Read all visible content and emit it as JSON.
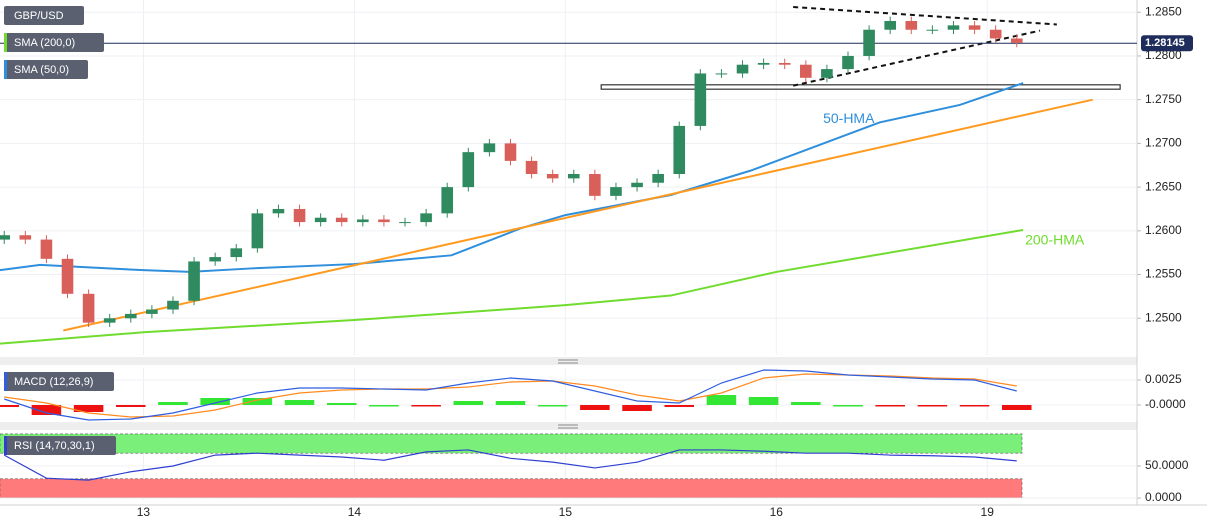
{
  "chart_data": [
    {
      "type": "candlestick",
      "symbol": "GBP/USD",
      "xlim": [
        -0.68,
        4.71
      ],
      "ylim": [
        1.2458,
        1.2864
      ],
      "yticks": [
        {
          "value": 1.25,
          "label": "1.2500"
        },
        {
          "value": 1.255,
          "label": "1.2550"
        },
        {
          "value": 1.26,
          "label": "1.2600"
        },
        {
          "value": 1.265,
          "label": "1.2650"
        },
        {
          "value": 1.27,
          "label": "1.2700"
        },
        {
          "value": 1.275,
          "label": "1.2750"
        },
        {
          "value": 1.28,
          "label": "1.2800"
        },
        {
          "value": 1.285,
          "label": "1.2850"
        }
      ],
      "up_color": "#2f8a5f",
      "down_color": "#d9605a",
      "x": [
        -0.66,
        -0.56,
        -0.46,
        -0.36,
        -0.26,
        -0.16,
        -0.06,
        0.04,
        0.14,
        0.24,
        0.34,
        0.44,
        0.54,
        0.64,
        0.74,
        0.84,
        0.94,
        1.04,
        1.14,
        1.24,
        1.34,
        1.44,
        1.54,
        1.64,
        1.74,
        1.84,
        1.94,
        2.04,
        2.14,
        2.24,
        2.34,
        2.44,
        2.54,
        2.64,
        2.74,
        2.84,
        2.94,
        3.04,
        3.14,
        3.24,
        3.34,
        3.44,
        3.54,
        3.64,
        3.74,
        3.84,
        3.94,
        4.04,
        4.14
      ],
      "open": [
        1.259,
        1.2595,
        1.259,
        1.2568,
        1.2528,
        1.2495,
        1.25,
        1.2505,
        1.251,
        1.252,
        1.2565,
        1.257,
        1.258,
        1.262,
        1.2625,
        1.261,
        1.2615,
        1.261,
        1.2613,
        1.261,
        1.261,
        1.262,
        1.265,
        1.269,
        1.27,
        1.268,
        1.2665,
        1.266,
        1.2665,
        1.264,
        1.265,
        1.2655,
        1.2665,
        1.272,
        1.278,
        1.278,
        1.279,
        1.2792,
        1.279,
        1.2775,
        1.2785,
        1.28,
        1.283,
        1.284,
        1.283,
        1.283,
        1.2835,
        1.283,
        1.282
      ],
      "high": [
        1.26,
        1.26,
        1.2595,
        1.2573,
        1.2533,
        1.2505,
        1.251,
        1.2515,
        1.2525,
        1.257,
        1.2575,
        1.2585,
        1.2625,
        1.263,
        1.263,
        1.262,
        1.262,
        1.2618,
        1.2618,
        1.2615,
        1.2625,
        1.2655,
        1.2695,
        1.2705,
        1.2705,
        1.2685,
        1.267,
        1.267,
        1.267,
        1.2655,
        1.266,
        1.267,
        1.2725,
        1.2785,
        1.2785,
        1.2795,
        1.2797,
        1.2797,
        1.2795,
        1.279,
        1.2805,
        1.2835,
        1.2845,
        1.2845,
        1.2835,
        1.284,
        1.284,
        1.2835,
        1.2825
      ],
      "low": [
        1.2585,
        1.2585,
        1.2563,
        1.2523,
        1.249,
        1.249,
        1.2495,
        1.25,
        1.2505,
        1.2515,
        1.256,
        1.2565,
        1.2575,
        1.2615,
        1.2605,
        1.2605,
        1.2605,
        1.2605,
        1.2605,
        1.2605,
        1.2605,
        1.2615,
        1.2645,
        1.2685,
        1.2675,
        1.266,
        1.2655,
        1.2655,
        1.2635,
        1.2635,
        1.2645,
        1.265,
        1.266,
        1.2715,
        1.2775,
        1.2775,
        1.2785,
        1.2785,
        1.277,
        1.277,
        1.278,
        1.2795,
        1.2825,
        1.2825,
        1.2825,
        1.2825,
        1.2825,
        1.2815,
        1.281
      ],
      "close": [
        1.2595,
        1.259,
        1.2568,
        1.2528,
        1.2495,
        1.25,
        1.2505,
        1.251,
        1.252,
        1.2565,
        1.257,
        1.258,
        1.262,
        1.2625,
        1.261,
        1.2615,
        1.261,
        1.2613,
        1.261,
        1.261,
        1.262,
        1.265,
        1.269,
        1.27,
        1.268,
        1.2665,
        1.266,
        1.2665,
        1.264,
        1.265,
        1.2655,
        1.2665,
        1.272,
        1.278,
        1.278,
        1.279,
        1.2792,
        1.279,
        1.2775,
        1.2785,
        1.28,
        1.283,
        1.284,
        1.283,
        1.283,
        1.2835,
        1.283,
        1.282,
        1.2815
      ],
      "series": [
        {
          "name": "SMA (200,0)",
          "label": "200-HMA",
          "color": "#6fdc2e",
          "x": [
            -0.68,
            0,
            1,
            2,
            2.5,
            3,
            4.17
          ],
          "values": [
            1.2471,
            1.2484,
            1.2498,
            1.2515,
            1.2526,
            1.2553,
            1.2601
          ]
        },
        {
          "name": "SMA (50,0)",
          "label": "50-HMA",
          "color": "#2f8fdc",
          "x": [
            -0.68,
            -0.49,
            0,
            0.22,
            0.51,
            1,
            1.46,
            1.79,
            2,
            2.5,
            2.88,
            3.49,
            3.87,
            4.17
          ],
          "values": [
            1.2555,
            1.2561,
            1.2555,
            1.2553,
            1.2557,
            1.2562,
            1.2572,
            1.2603,
            1.2618,
            1.2641,
            1.2669,
            1.2724,
            1.2744,
            1.2769
          ]
        }
      ],
      "trendline": {
        "color": "#ff9a1f",
        "x": [
          -0.38,
          4.5
        ],
        "values": [
          1.2486,
          1.275
        ]
      },
      "dashed_lines": [
        {
          "x": [
            3.08,
            4.33
          ],
          "values": [
            1.2856,
            1.2836
          ]
        },
        {
          "x": [
            3.08,
            4.25
          ],
          "values": [
            1.2766,
            1.2829
          ]
        }
      ],
      "zone_box": {
        "x": [
          2.17,
          4.63
        ],
        "values": [
          1.2762,
          1.2767
        ]
      },
      "current_price": {
        "value": 1.28145,
        "label": "1.28145",
        "color": "#1f2d5c"
      }
    },
    {
      "type": "macd",
      "name": "MACD (12,26,9)",
      "xlim": [
        -0.68,
        4.71
      ],
      "ylim": [
        -0.0015,
        0.0037
      ],
      "yticks": [
        0.0025,
        {
          "value": 0,
          "label": "-0.0000"
        }
      ],
      "x": [
        -0.66,
        -0.46,
        -0.26,
        -0.06,
        0.14,
        0.34,
        0.54,
        0.74,
        0.94,
        1.14,
        1.34,
        1.54,
        1.74,
        1.94,
        2.14,
        2.34,
        2.54,
        2.74,
        2.94,
        3.14,
        3.34,
        3.54,
        3.74,
        3.94,
        4.14
      ],
      "macd": {
        "color": "#2f5fe0",
        "values": [
          0.0006,
          -0.0008,
          -0.0015,
          -0.0014,
          -0.0008,
          0.0002,
          0.0012,
          0.0017,
          0.0017,
          0.0016,
          0.0015,
          0.0022,
          0.0027,
          0.0024,
          0.0014,
          0.0004,
          0.0002,
          0.0022,
          0.0035,
          0.0034,
          0.003,
          0.0028,
          0.0026,
          0.0025,
          0.0014
        ]
      },
      "signal": {
        "color": "#ff8a1f",
        "values": [
          0.0008,
          0.0002,
          -0.0008,
          -0.0012,
          -0.0011,
          -0.0005,
          0.0005,
          0.0012,
          0.0015,
          0.0016,
          0.0016,
          0.0018,
          0.0023,
          0.0024,
          0.0019,
          0.001,
          0.0004,
          0.0012,
          0.0027,
          0.0031,
          0.003,
          0.0029,
          0.0027,
          0.0026,
          0.0019
        ]
      },
      "histogram": {
        "up_color": "#33e633",
        "down_color": "#ee1111",
        "values": [
          -0.0002,
          -0.001,
          -0.0007,
          -0.0002,
          0.0003,
          0.0007,
          0.0007,
          0.0005,
          0.0002,
          0,
          -0.0001,
          0.0004,
          0.0004,
          0,
          -0.0005,
          -0.0006,
          -0.0002,
          0.001,
          0.0008,
          0.0003,
          0,
          -0.0001,
          -0.0001,
          -0.0001,
          -0.0005
        ]
      }
    },
    {
      "type": "rsi",
      "name": "RSI (14,70,30,1)",
      "xlim": [
        -0.68,
        4.71
      ],
      "ylim": [
        -3,
        103
      ],
      "yticks": [
        {
          "value": 50,
          "label": "50.0000"
        },
        {
          "value": 0,
          "label": "0.0000"
        }
      ],
      "overbought": {
        "range": [
          70,
          100
        ],
        "color": "#7af07a"
      },
      "oversold": {
        "range": [
          0,
          30
        ],
        "color": "#ff7b7b"
      },
      "xticks": [
        {
          "value": 0,
          "label": "13"
        },
        {
          "value": 1,
          "label": "14"
        },
        {
          "value": 2,
          "label": "15"
        },
        {
          "value": 3,
          "label": "16"
        },
        {
          "value": 4,
          "label": "19"
        }
      ],
      "x": [
        -0.66,
        -0.46,
        -0.26,
        -0.06,
        0.14,
        0.34,
        0.54,
        0.74,
        0.94,
        1.14,
        1.34,
        1.54,
        1.74,
        1.94,
        2.14,
        2.34,
        2.54,
        2.74,
        2.94,
        3.14,
        3.34,
        3.54,
        3.74,
        3.94,
        4.14
      ],
      "color": "#2f3fd0",
      "values": [
        67,
        31,
        28,
        41,
        50,
        67,
        70,
        67,
        64,
        59,
        72,
        75,
        62,
        56,
        47,
        56,
        75,
        75,
        73,
        70,
        70,
        67,
        66,
        64,
        58
      ]
    }
  ]
}
